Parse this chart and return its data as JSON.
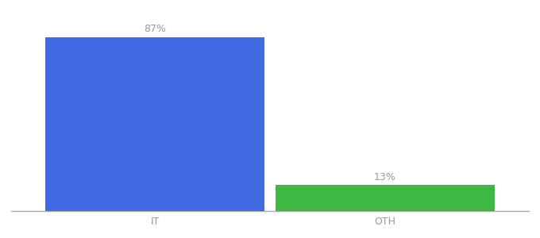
{
  "categories": [
    "IT",
    "OTH"
  ],
  "values": [
    87,
    13
  ],
  "bar_colors": [
    "#4169e1",
    "#3cb843"
  ],
  "label_texts": [
    "87%",
    "13%"
  ],
  "background_color": "#ffffff",
  "ylim": [
    0,
    100
  ],
  "bar_width": 0.38,
  "label_fontsize": 9,
  "tick_fontsize": 9,
  "label_color": "#999999",
  "tick_color": "#999999",
  "x_positions": [
    0.3,
    0.7
  ],
  "xlim": [
    0.05,
    0.95
  ]
}
